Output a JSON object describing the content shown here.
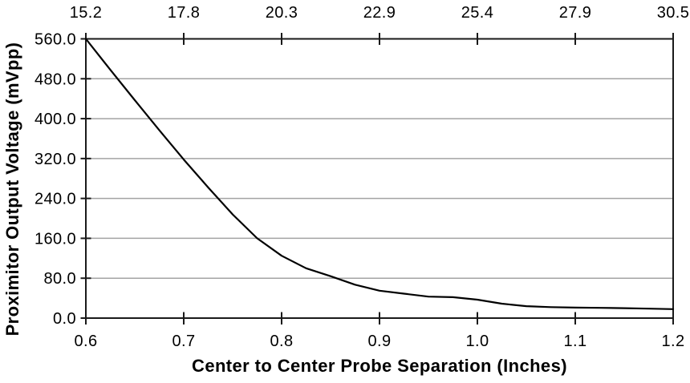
{
  "page": {
    "background_color": "#ffffff"
  },
  "chart_data": {
    "type": "line",
    "title": "",
    "xlabel": "Center to Center Probe Separation (Inches)",
    "ylabel": "Proximitor Output Voltage (mVpp)",
    "legend": "none",
    "grid": "horizontal-only",
    "xlim": [
      0.6,
      1.2
    ],
    "ylim": [
      0,
      560
    ],
    "axis_color": "#1a1a1a",
    "line_color": "#000000",
    "gridline_color": "#a3a3a3",
    "x_tick_values": [
      0.6,
      0.7,
      0.8,
      0.9,
      1.0,
      1.1,
      1.2
    ],
    "x_tick_labels_bottom": [
      "0.6",
      "0.7",
      "0.8",
      "0.9",
      "1.0",
      "1.1",
      "1.2"
    ],
    "x_tick_labels_top": [
      "15.2",
      "17.8",
      "20.3",
      "22.9",
      "25.4",
      "27.9",
      "30.5"
    ],
    "top_axis_unit": "millimeters-equivalent",
    "y_tick_values": [
      560,
      480,
      400,
      320,
      240,
      160,
      80,
      0
    ],
    "y_tick_labels": [
      "560.0",
      "480.0",
      "400.0",
      "320.0",
      "240.0",
      "160.0",
      "80.0",
      "0.0"
    ],
    "series": [
      {
        "name": "Proximitor Output Voltage",
        "x": [
          0.6,
          0.625,
          0.65,
          0.675,
          0.7,
          0.725,
          0.75,
          0.775,
          0.8,
          0.825,
          0.85,
          0.875,
          0.9,
          0.925,
          0.95,
          0.975,
          1.0,
          1.025,
          1.05,
          1.075,
          1.1,
          1.125,
          1.15,
          1.175,
          1.2
        ],
        "y": [
          560,
          498,
          437,
          377,
          318,
          262,
          208,
          160,
          125,
          100,
          84,
          67,
          55,
          49,
          43,
          42,
          37,
          29,
          24,
          22,
          21,
          20.5,
          20,
          19,
          18
        ]
      }
    ]
  }
}
